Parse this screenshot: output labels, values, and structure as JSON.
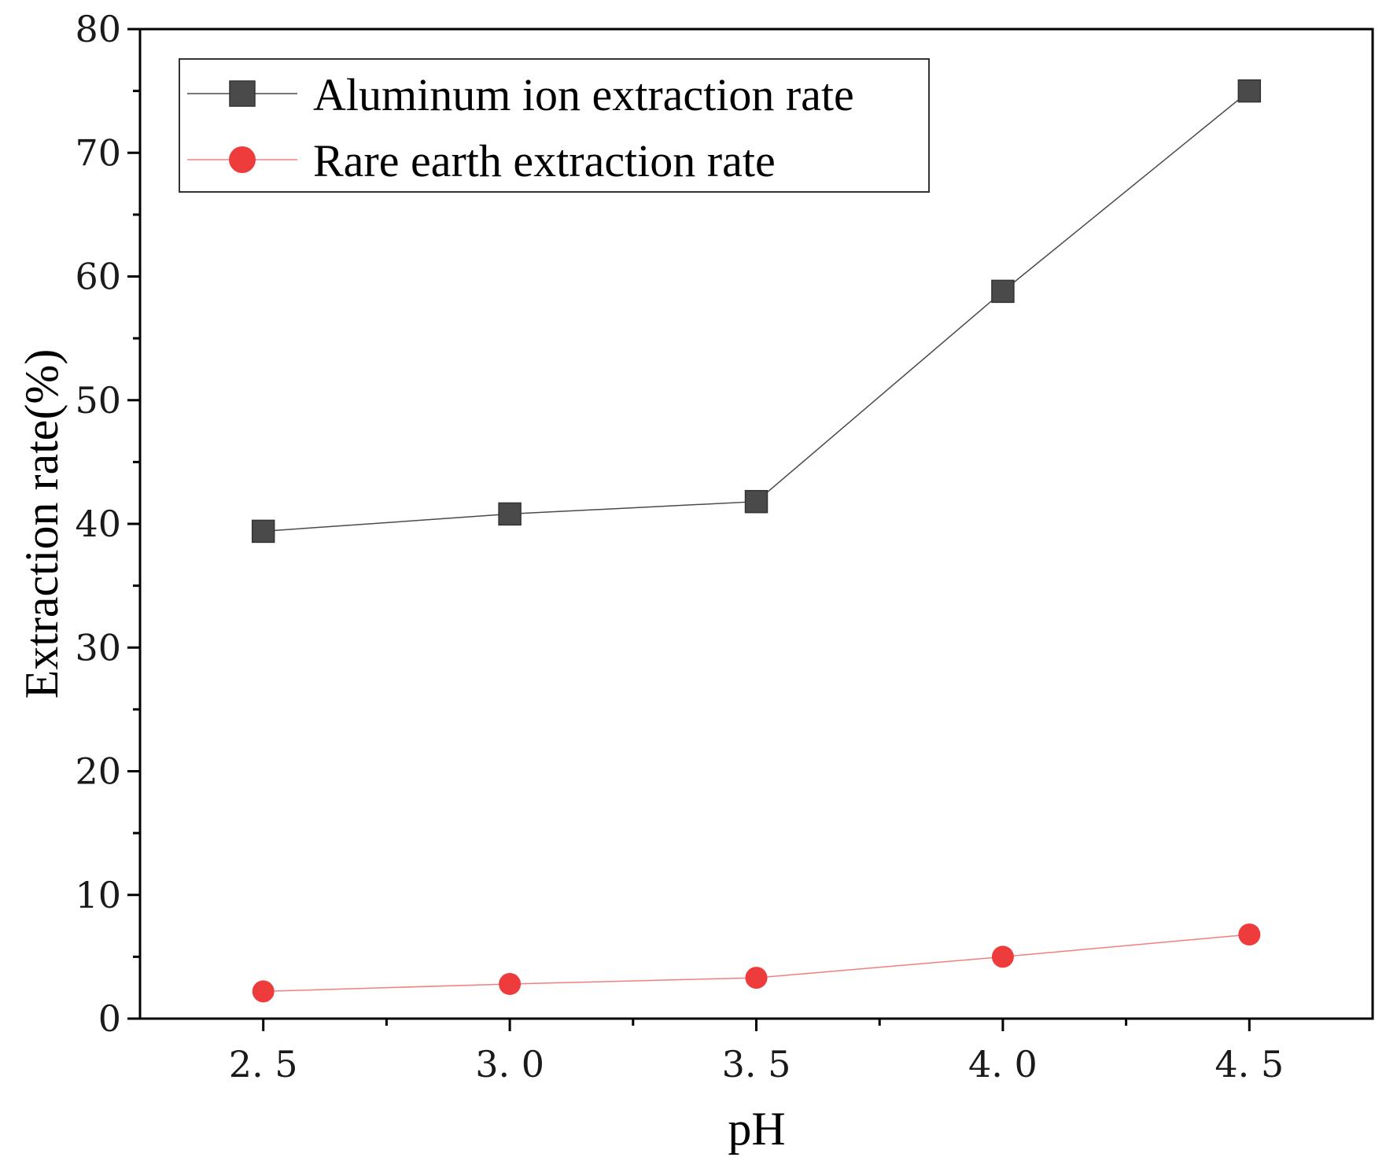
{
  "chart_data": {
    "type": "line",
    "title": "",
    "xlabel": "pH",
    "ylabel": "Extraction rate(%)",
    "x": [
      2.5,
      3.0,
      3.5,
      4.0,
      4.5
    ],
    "x_tick_labels": [
      "2. 5",
      "3. 0",
      "3. 5",
      "4. 0",
      "4. 5"
    ],
    "xlim": [
      2.25,
      4.75
    ],
    "ylim": [
      0,
      80
    ],
    "y_ticks": [
      0,
      10,
      20,
      30,
      40,
      50,
      60,
      70,
      80
    ],
    "grid": false,
    "legend_position": "top-left",
    "series": [
      {
        "name": "Aluminum ion extraction rate",
        "marker": "square",
        "color": "#4a4a4a",
        "values": [
          39.4,
          40.8,
          41.8,
          58.8,
          75.0
        ]
      },
      {
        "name": "Rare earth extraction rate",
        "marker": "circle",
        "color": "#ee3b3b",
        "values": [
          2.2,
          2.8,
          3.3,
          5.0,
          6.8
        ]
      }
    ]
  }
}
